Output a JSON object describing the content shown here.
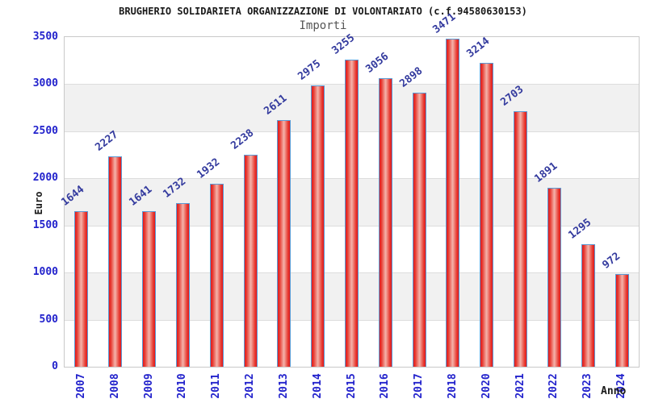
{
  "header": {
    "title": "BRUGHERIO SOLIDARIETA ORGANIZZAZIONE DI VOLONTARIATO (c.f.94580630153)",
    "subtitle": "Importi"
  },
  "axes": {
    "y_label": "Euro",
    "x_label": "Anno",
    "y_ticks": [
      3500,
      3000,
      2500,
      2000,
      1500,
      1000,
      500,
      0
    ]
  },
  "chart_data": {
    "type": "bar",
    "title": "Importi",
    "xlabel": "Anno",
    "ylabel": "Euro",
    "ylim": [
      0,
      3500
    ],
    "grid": "horizontal-bands-alternating",
    "legend": "none",
    "categories": [
      "2007",
      "2008",
      "2009",
      "2010",
      "2011",
      "2012",
      "2013",
      "2014",
      "2015",
      "2016",
      "2017",
      "2018",
      "2020",
      "2021",
      "2022",
      "2023",
      "2024"
    ],
    "values": [
      1644,
      2227,
      1641,
      1732,
      1932,
      2238,
      2611,
      2975,
      3255,
      3056,
      2898,
      3471,
      3214,
      2703,
      1891,
      1295,
      972
    ],
    "colors": {
      "bar_edge": "#5b9bd5",
      "bar_fill_dark": "#e2191c",
      "bar_fill_light": "#f4b4ab",
      "value_label": "#333a9e",
      "tick_label": "#2222cc",
      "band_gray": "#f1f1f1",
      "grid_line": "#dddddd",
      "plot_border": "#c9c9c9",
      "title_text": "#1a1a1a",
      "subtitle_text": "#555555"
    }
  }
}
